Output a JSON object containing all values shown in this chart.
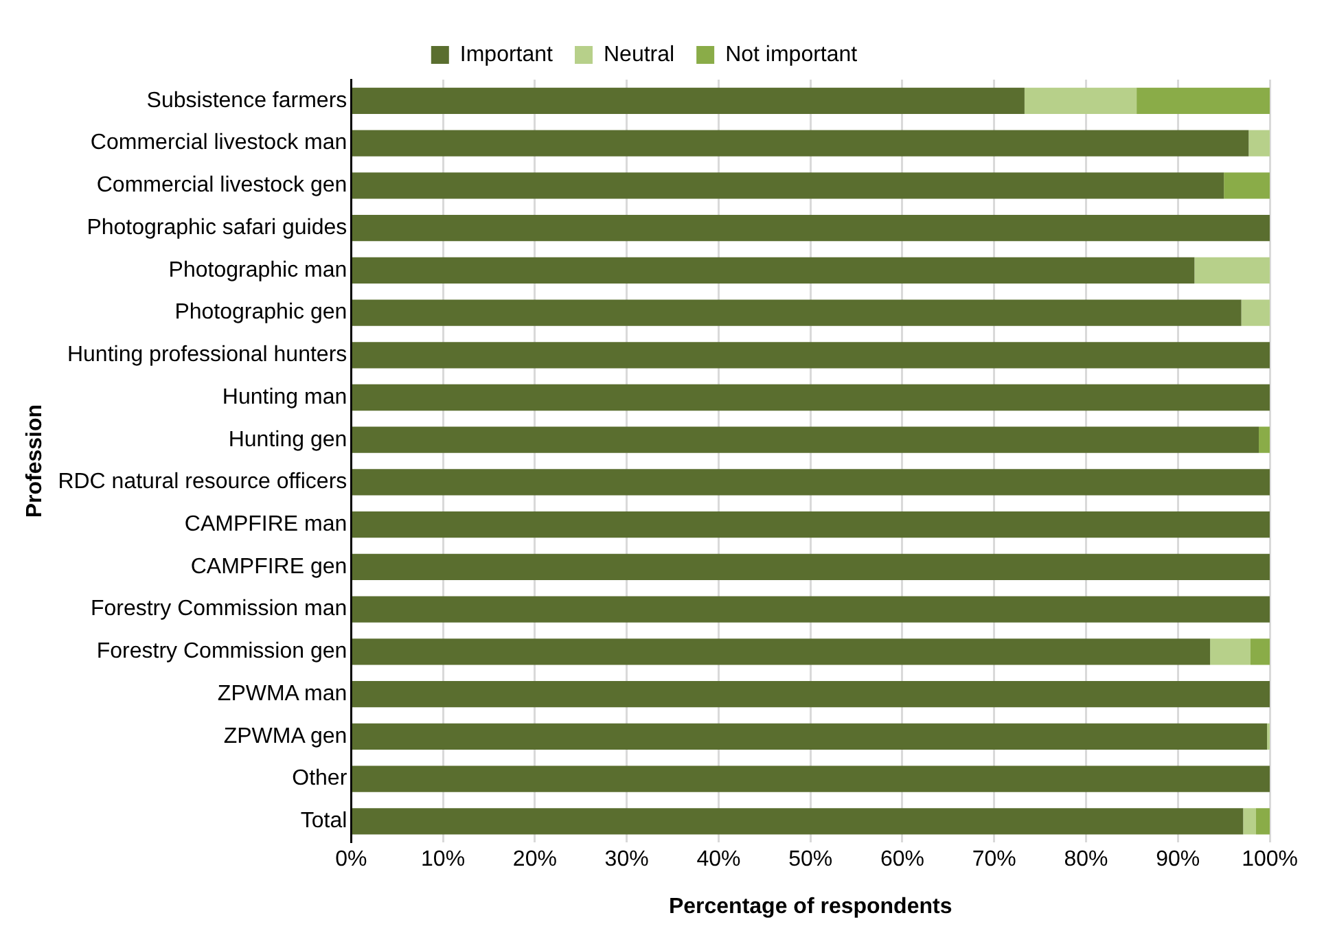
{
  "chart_data": {
    "type": "bar",
    "orientation": "horizontal",
    "stacked": true,
    "xlabel": "Percentage of respondents",
    "ylabel": "Profession",
    "categories": [
      "Subsistence farmers",
      "Commercial livestock man",
      "Commercial livestock gen",
      "Photographic safari guides",
      "Photographic man",
      "Photographic gen",
      "Hunting professional hunters",
      "Hunting man",
      "Hunting gen",
      "RDC natural resource officers",
      "CAMPFIRE man",
      "CAMPFIRE gen",
      "Forestry Commission man",
      "Forestry Commission gen",
      "ZPWMA man",
      "ZPWMA gen",
      "Other",
      "Total"
    ],
    "series": [
      {
        "name": "Important",
        "color": "#5a6e2f",
        "values": [
          73.3,
          97.7,
          95.0,
          100,
          91.8,
          96.9,
          100,
          100,
          98.8,
          100,
          100,
          100,
          100,
          93.5,
          100,
          99.7,
          100,
          97.1
        ]
      },
      {
        "name": "Neutral",
        "color": "#b7d08a",
        "values": [
          12.2,
          2.3,
          0,
          0,
          8.2,
          3.1,
          0,
          0,
          0,
          0,
          0,
          0,
          0,
          4.4,
          0,
          0.3,
          0,
          1.4
        ]
      },
      {
        "name": "Not important",
        "color": "#8aac48",
        "values": [
          14.5,
          0,
          5.0,
          0,
          0,
          0,
          0,
          0,
          1.2,
          0,
          0,
          0,
          0,
          2.1,
          0,
          0,
          0,
          1.5
        ]
      }
    ],
    "xlim": [
      0,
      100
    ],
    "xticks": [
      {
        "value": 0,
        "label": "0%"
      },
      {
        "value": 10,
        "label": "10%"
      },
      {
        "value": 20,
        "label": "20%"
      },
      {
        "value": 30,
        "label": "30%"
      },
      {
        "value": 40,
        "label": "40%"
      },
      {
        "value": 50,
        "label": "50%"
      },
      {
        "value": 60,
        "label": "60%"
      },
      {
        "value": 70,
        "label": "70%"
      },
      {
        "value": 80,
        "label": "80%"
      },
      {
        "value": 90,
        "label": "90%"
      },
      {
        "value": 100,
        "label": "100%"
      }
    ],
    "grid": "x",
    "legend": "top"
  }
}
